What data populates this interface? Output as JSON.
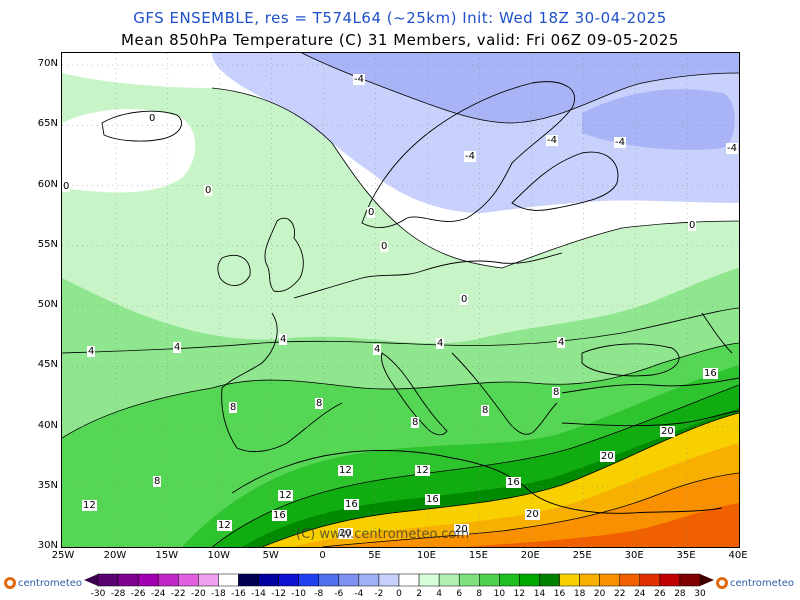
{
  "header": {
    "line1": "GFS ENSEMBLE, res = T574L64 (~25km)    Init: Wed 18Z 30-04-2025",
    "line2": "Mean 850hPa Temperature (C)    31 Members, valid: Fri 06Z 09-05-2025"
  },
  "map": {
    "lat_labels": [
      "70N",
      "65N",
      "60N",
      "55N",
      "50N",
      "45N",
      "40N",
      "35N",
      "30N"
    ],
    "lon_labels": [
      "25W",
      "20W",
      "15W",
      "10W",
      "5W",
      "0",
      "5E",
      "10E",
      "15E",
      "20E",
      "25E",
      "30E",
      "35E",
      "40E"
    ],
    "watermark": "(C)  www.centrometeo.com",
    "contour_labels": [
      "-4",
      "-4",
      "-4",
      "-4",
      "-4",
      "0",
      "0",
      "0",
      "0",
      "0",
      "0",
      "0",
      "4",
      "4",
      "4",
      "4",
      "4",
      "4",
      "8",
      "8",
      "8",
      "8",
      "8",
      "8",
      "12",
      "12",
      "12",
      "12",
      "12",
      "16",
      "16",
      "16",
      "16",
      "16",
      "20",
      "20",
      "20",
      "20",
      "20"
    ]
  },
  "legend": {
    "logo": "centrometeo",
    "scale_labels": [
      "-30",
      "-28",
      "-26",
      "-24",
      "-22",
      "-20",
      "-18",
      "-16",
      "-14",
      "-12",
      "-10",
      "-8",
      "-6",
      "-4",
      "-2",
      "0",
      "2",
      "4",
      "6",
      "8",
      "10",
      "12",
      "14",
      "16",
      "18",
      "20",
      "22",
      "24",
      "26",
      "28",
      "30"
    ],
    "colors": [
      "#5a0070",
      "#800090",
      "#a000b0",
      "#c028c8",
      "#e060e0",
      "#f0a0f0",
      "#ffffff",
      "#000050",
      "#0000a0",
      "#1010d0",
      "#2040f0",
      "#5070f0",
      "#8090f0",
      "#a0b0f8",
      "#c8d0fc",
      "#ffffff",
      "#d8ffd8",
      "#b0f0b0",
      "#80e080",
      "#50d050",
      "#20c020",
      "#00a800",
      "#008000",
      "#f8d000",
      "#f8b000",
      "#f89000",
      "#f06000",
      "#e03000",
      "#c00000",
      "#800000"
    ]
  }
}
